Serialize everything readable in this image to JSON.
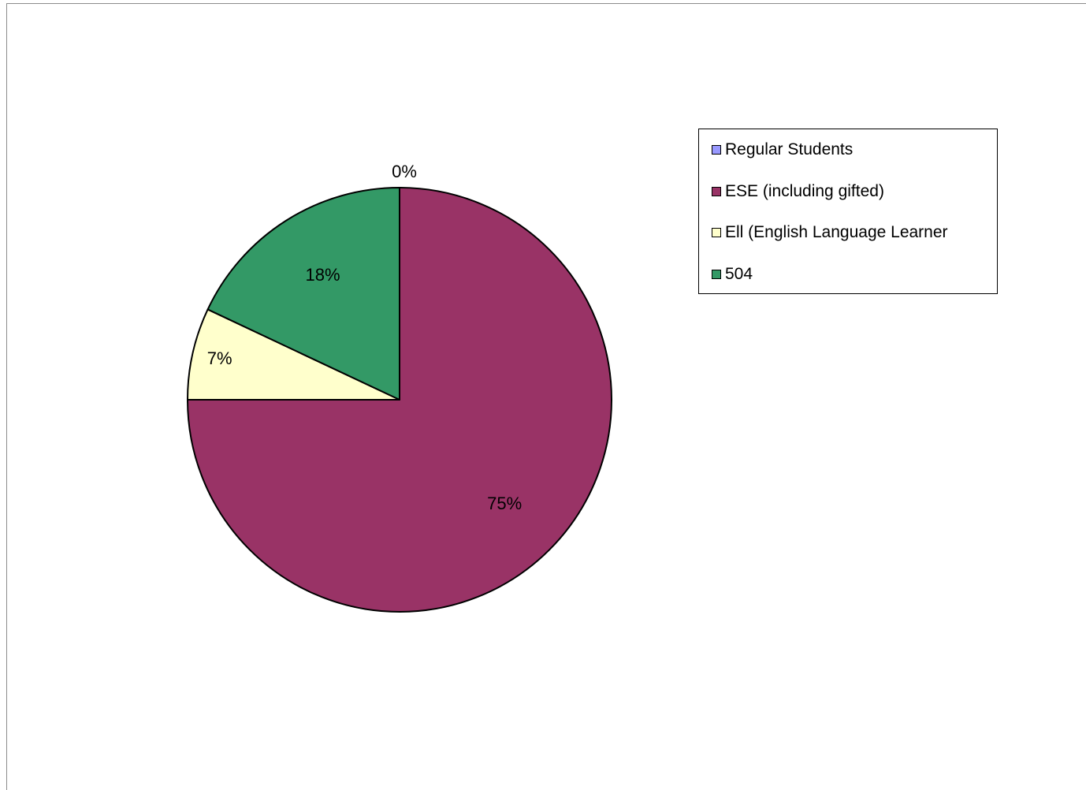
{
  "chart_data": {
    "type": "pie",
    "categories": [
      "Regular Students",
      "ESE (including gifted)",
      "Ell (English Language Learner",
      "504"
    ],
    "values": [
      0,
      75,
      7,
      18
    ],
    "data_labels": [
      "0%",
      "75%",
      "7%",
      "18%"
    ],
    "colors": [
      "#9999ff",
      "#993366",
      "#ffffcc",
      "#339966"
    ],
    "title": "",
    "legend": "right"
  }
}
